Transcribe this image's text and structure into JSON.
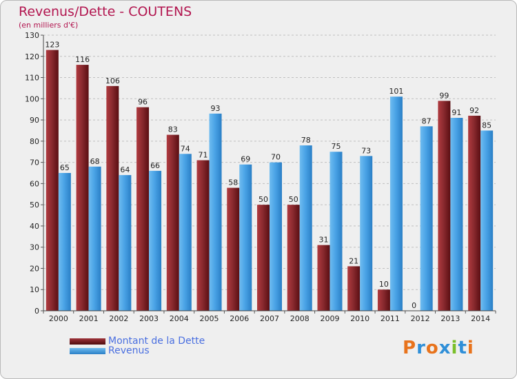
{
  "title": "Revenus/Dette - COUTENS",
  "subtitle": "(en milliers d'€)",
  "legend": {
    "debt_label": "Montant de la Dette",
    "revenue_label": "Revenus"
  },
  "logo": {
    "text": "Proxiti"
  },
  "colors": {
    "debt": "#7a1d22",
    "revenue": "#3c9be0",
    "title": "#b2154f",
    "legend_text": "#4a6fe0"
  },
  "chart_data": {
    "type": "bar",
    "title": "Revenus/Dette - COUTENS",
    "subtitle": "(en milliers d'€)",
    "categories": [
      "2000",
      "2001",
      "2002",
      "2003",
      "2004",
      "2005",
      "2006",
      "2007",
      "2008",
      "2009",
      "2010",
      "2011",
      "2012",
      "2013",
      "2014"
    ],
    "series": [
      {
        "name": "Montant de la Dette",
        "values": [
          123,
          116,
          106,
          96,
          83,
          71,
          58,
          50,
          50,
          31,
          21,
          10,
          0,
          99,
          92
        ]
      },
      {
        "name": "Revenus",
        "values": [
          65,
          68,
          64,
          66,
          74,
          93,
          69,
          70,
          78,
          75,
          73,
          101,
          87,
          91,
          85
        ]
      }
    ],
    "ylim": [
      0,
      130
    ],
    "yticks": [
      0,
      10,
      20,
      30,
      40,
      50,
      60,
      70,
      80,
      90,
      100,
      110,
      120,
      130
    ],
    "grid": true,
    "legend_position": "bottom-left"
  }
}
